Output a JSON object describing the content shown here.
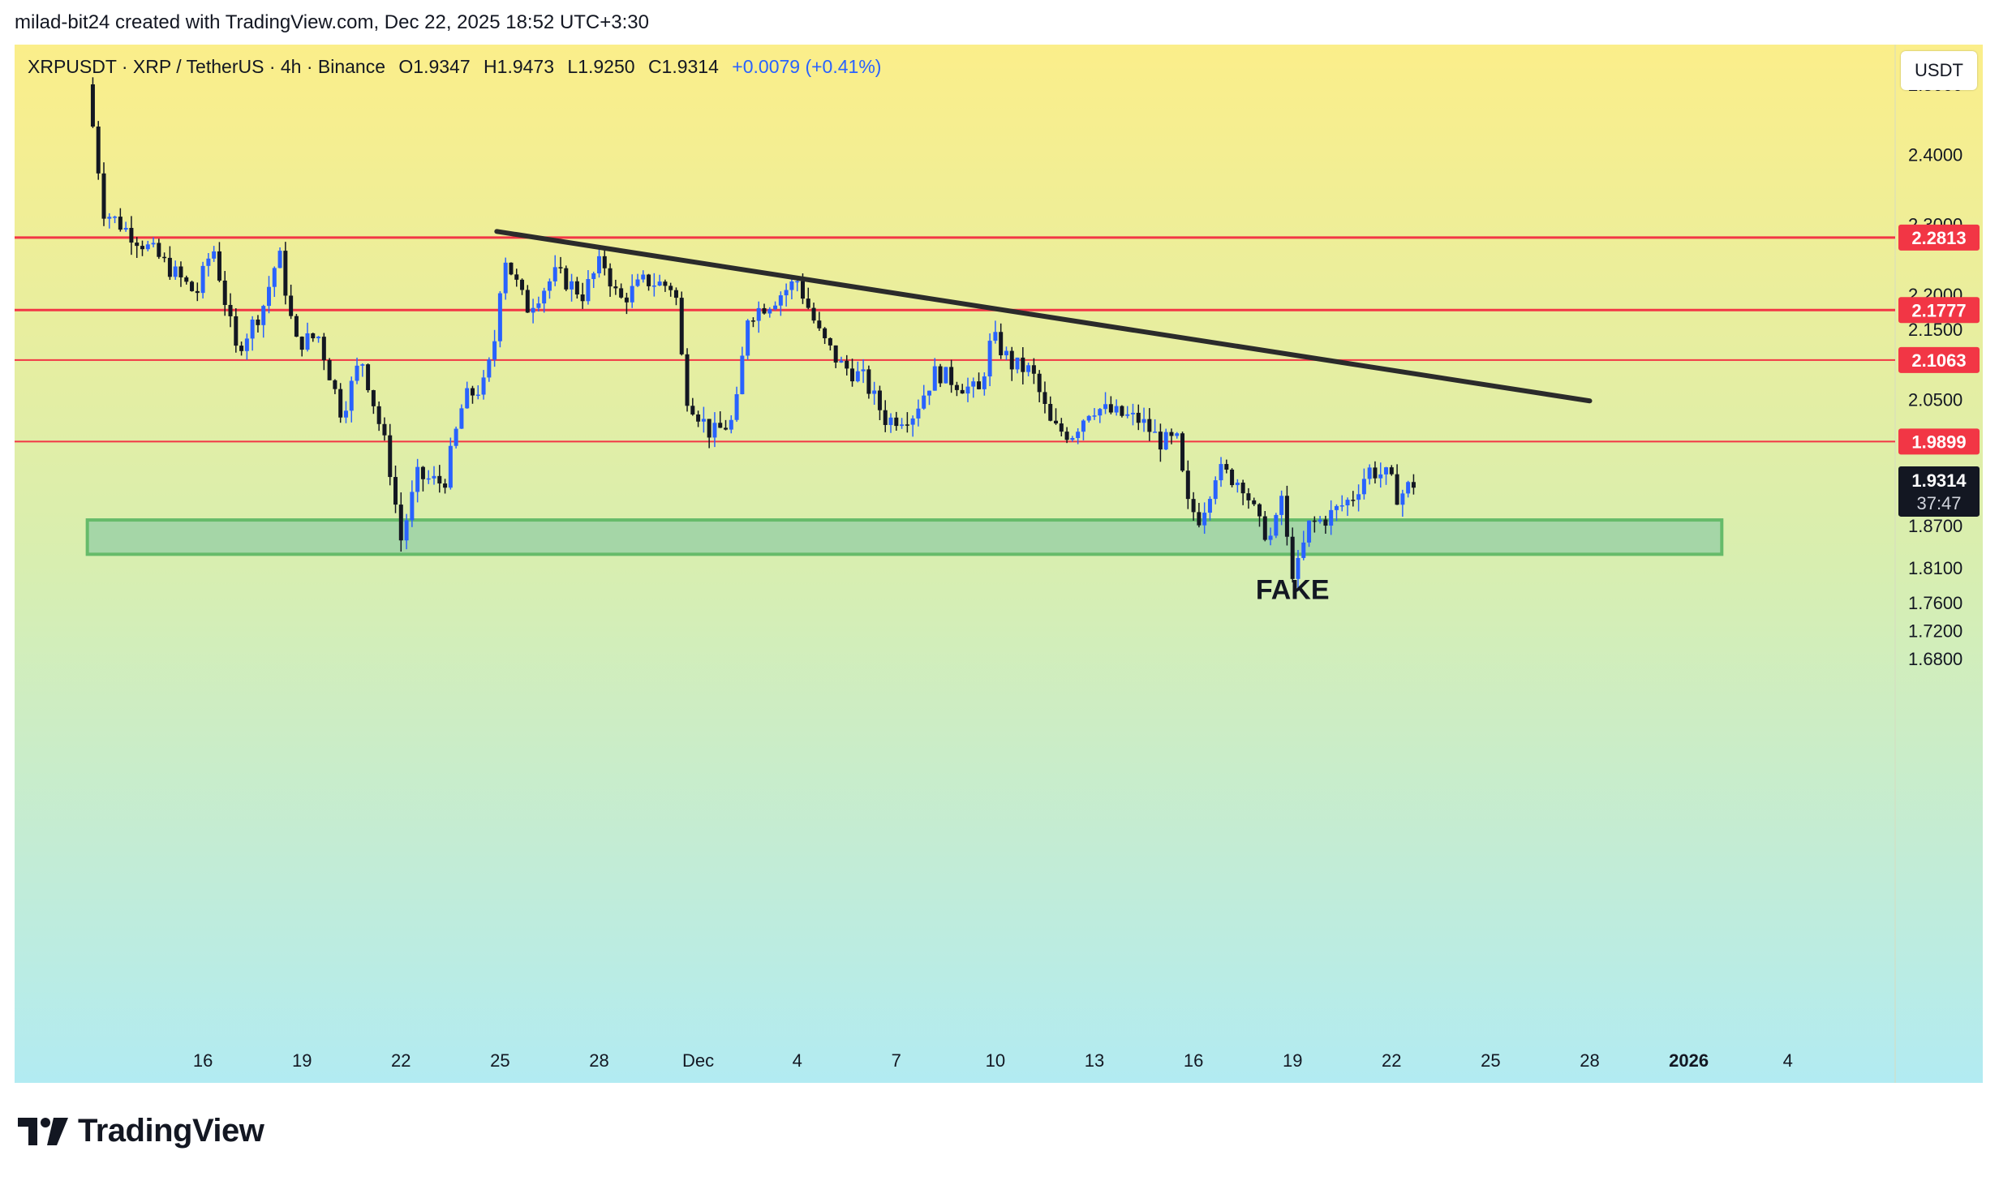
{
  "header": {
    "credit": "milad-bit24 created with TradingView.com, Dec 22, 2025 18:52 UTC+3:30"
  },
  "legend": {
    "symbol": "XRPUSDT · XRP / TetherUS · 4h · Binance",
    "open": "O1.9347",
    "high": "H1.9473",
    "low": "L1.9250",
    "close": "C1.9314",
    "change": "+0.0079 (+0.41%)"
  },
  "currency": "USDT",
  "footer": {
    "brand": "TradingView",
    "logo_icon": "tradingview-logo-icon"
  },
  "colors": {
    "up_candle": "#2962ff",
    "down_candle": "#131722",
    "resistance_line": "#f23645",
    "support_zone_fill": "#a5d6a7",
    "support_zone_border": "#66bb6a",
    "trendline": "#2b2b2b",
    "bg_top": "#fbee8a",
    "bg_bottom": "#b2ebf2"
  },
  "chart_data": {
    "type": "candlestick",
    "interval": "4h",
    "y_axis": {
      "min": 1.62,
      "max": 2.58,
      "ticks": [
        {
          "value": 2.5,
          "label": "2.5000"
        },
        {
          "value": 2.4,
          "label": "2.4000"
        },
        {
          "value": 2.3,
          "label": "2.3000"
        },
        {
          "value": 2.2,
          "label": "2.2000"
        },
        {
          "value": 2.15,
          "label": "2.1500"
        },
        {
          "value": 2.05,
          "label": "2.0500"
        },
        {
          "value": 1.87,
          "label": "1.8700"
        },
        {
          "value": 1.81,
          "label": "1.8100"
        },
        {
          "value": 1.76,
          "label": "1.7600"
        },
        {
          "value": 1.72,
          "label": "1.7200"
        },
        {
          "value": 1.68,
          "label": "1.6800"
        }
      ]
    },
    "x_axis": {
      "start": "Nov 13 12:00",
      "end": "Jan 7",
      "ticks": [
        {
          "day": 3,
          "label": "16"
        },
        {
          "day": 6,
          "label": "19"
        },
        {
          "day": 9,
          "label": "22"
        },
        {
          "day": 12,
          "label": "25"
        },
        {
          "day": 15,
          "label": "28"
        },
        {
          "day": 18,
          "label": "Dec"
        },
        {
          "day": 21,
          "label": "4"
        },
        {
          "day": 24,
          "label": "7"
        },
        {
          "day": 27,
          "label": "10"
        },
        {
          "day": 30,
          "label": "13"
        },
        {
          "day": 33,
          "label": "16"
        },
        {
          "day": 36,
          "label": "19"
        },
        {
          "day": 39,
          "label": "22"
        },
        {
          "day": 42,
          "label": "25"
        },
        {
          "day": 45,
          "label": "28"
        },
        {
          "day": 48,
          "label": "2026"
        },
        {
          "day": 51,
          "label": "4"
        }
      ]
    },
    "horizontal_levels": [
      {
        "value": 2.2813,
        "label": "2.2813"
      },
      {
        "value": 2.1777,
        "label": "2.1777"
      },
      {
        "value": 2.1063,
        "label": "2.1063"
      },
      {
        "value": 1.9899,
        "label": "1.9899"
      }
    ],
    "last_price": {
      "value": 1.9314,
      "label": "1.9314",
      "countdown": "37:47"
    },
    "support_zone": {
      "low": 1.829,
      "high": 1.878,
      "start_day": -0.5,
      "end_day": 49
    },
    "trendline": {
      "from": {
        "day": 11.9,
        "price": 2.29
      },
      "to": {
        "day": 45,
        "price": 2.048
      }
    },
    "annotations": [
      {
        "text": "FAKE",
        "day": 36,
        "price": 1.765
      }
    ],
    "path_anchors": [
      {
        "day": -0.5,
        "price": 2.5
      },
      {
        "day": 0,
        "price": 2.32
      },
      {
        "day": 1.5,
        "price": 2.26
      },
      {
        "day": 2.8,
        "price": 2.2
      },
      {
        "day": 3.3,
        "price": 2.27
      },
      {
        "day": 4,
        "price": 2.12
      },
      {
        "day": 4.8,
        "price": 2.18
      },
      {
        "day": 5.3,
        "price": 2.26
      },
      {
        "day": 5.8,
        "price": 2.13
      },
      {
        "day": 6.5,
        "price": 2.14
      },
      {
        "day": 7.2,
        "price": 2.03
      },
      {
        "day": 7.8,
        "price": 2.11
      },
      {
        "day": 8.6,
        "price": 1.97
      },
      {
        "day": 9.0,
        "price": 1.85
      },
      {
        "day": 9.5,
        "price": 1.94
      },
      {
        "day": 10.3,
        "price": 1.93
      },
      {
        "day": 10.9,
        "price": 2.05
      },
      {
        "day": 11.5,
        "price": 2.07
      },
      {
        "day": 11.8,
        "price": 2.12
      },
      {
        "day": 12.1,
        "price": 2.26
      },
      {
        "day": 12.8,
        "price": 2.18
      },
      {
        "day": 13.7,
        "price": 2.23
      },
      {
        "day": 14.5,
        "price": 2.2
      },
      {
        "day": 15.1,
        "price": 2.25
      },
      {
        "day": 15.6,
        "price": 2.19
      },
      {
        "day": 16.4,
        "price": 2.22
      },
      {
        "day": 17.3,
        "price": 2.21
      },
      {
        "day": 17.6,
        "price": 2.06
      },
      {
        "day": 18.4,
        "price": 2.0
      },
      {
        "day": 19.1,
        "price": 2.02
      },
      {
        "day": 19.5,
        "price": 2.17
      },
      {
        "day": 20.2,
        "price": 2.19
      },
      {
        "day": 21.0,
        "price": 2.22
      },
      {
        "day": 21.7,
        "price": 2.14
      },
      {
        "day": 22.3,
        "price": 2.1
      },
      {
        "day": 23.0,
        "price": 2.08
      },
      {
        "day": 23.7,
        "price": 2.02
      },
      {
        "day": 24.5,
        "price": 2.03
      },
      {
        "day": 25.2,
        "price": 2.09
      },
      {
        "day": 26.0,
        "price": 2.07
      },
      {
        "day": 26.5,
        "price": 2.06
      },
      {
        "day": 26.9,
        "price": 2.14
      },
      {
        "day": 27.5,
        "price": 2.1
      },
      {
        "day": 28.1,
        "price": 2.09
      },
      {
        "day": 28.7,
        "price": 2.01
      },
      {
        "day": 29.3,
        "price": 2.0
      },
      {
        "day": 29.9,
        "price": 2.04
      },
      {
        "day": 30.6,
        "price": 2.03
      },
      {
        "day": 31.4,
        "price": 2.02
      },
      {
        "day": 32.0,
        "price": 1.99
      },
      {
        "day": 32.5,
        "price": 1.99
      },
      {
        "day": 32.8,
        "price": 1.9
      },
      {
        "day": 33.2,
        "price": 1.88
      },
      {
        "day": 33.7,
        "price": 1.95
      },
      {
        "day": 34.5,
        "price": 1.93
      },
      {
        "day": 35.0,
        "price": 1.87
      },
      {
        "day": 35.4,
        "price": 1.85
      },
      {
        "day": 35.7,
        "price": 1.92
      },
      {
        "day": 35.9,
        "price": 1.81
      },
      {
        "day": 36.1,
        "price": 1.8
      },
      {
        "day": 36.5,
        "price": 1.87
      },
      {
        "day": 37.0,
        "price": 1.88
      },
      {
        "day": 37.8,
        "price": 1.91
      },
      {
        "day": 38.3,
        "price": 1.95
      },
      {
        "day": 38.9,
        "price": 1.94
      },
      {
        "day": 39.2,
        "price": 1.91
      },
      {
        "day": 39.6,
        "price": 1.93
      },
      {
        "day": 39.8,
        "price": 1.93
      }
    ]
  }
}
